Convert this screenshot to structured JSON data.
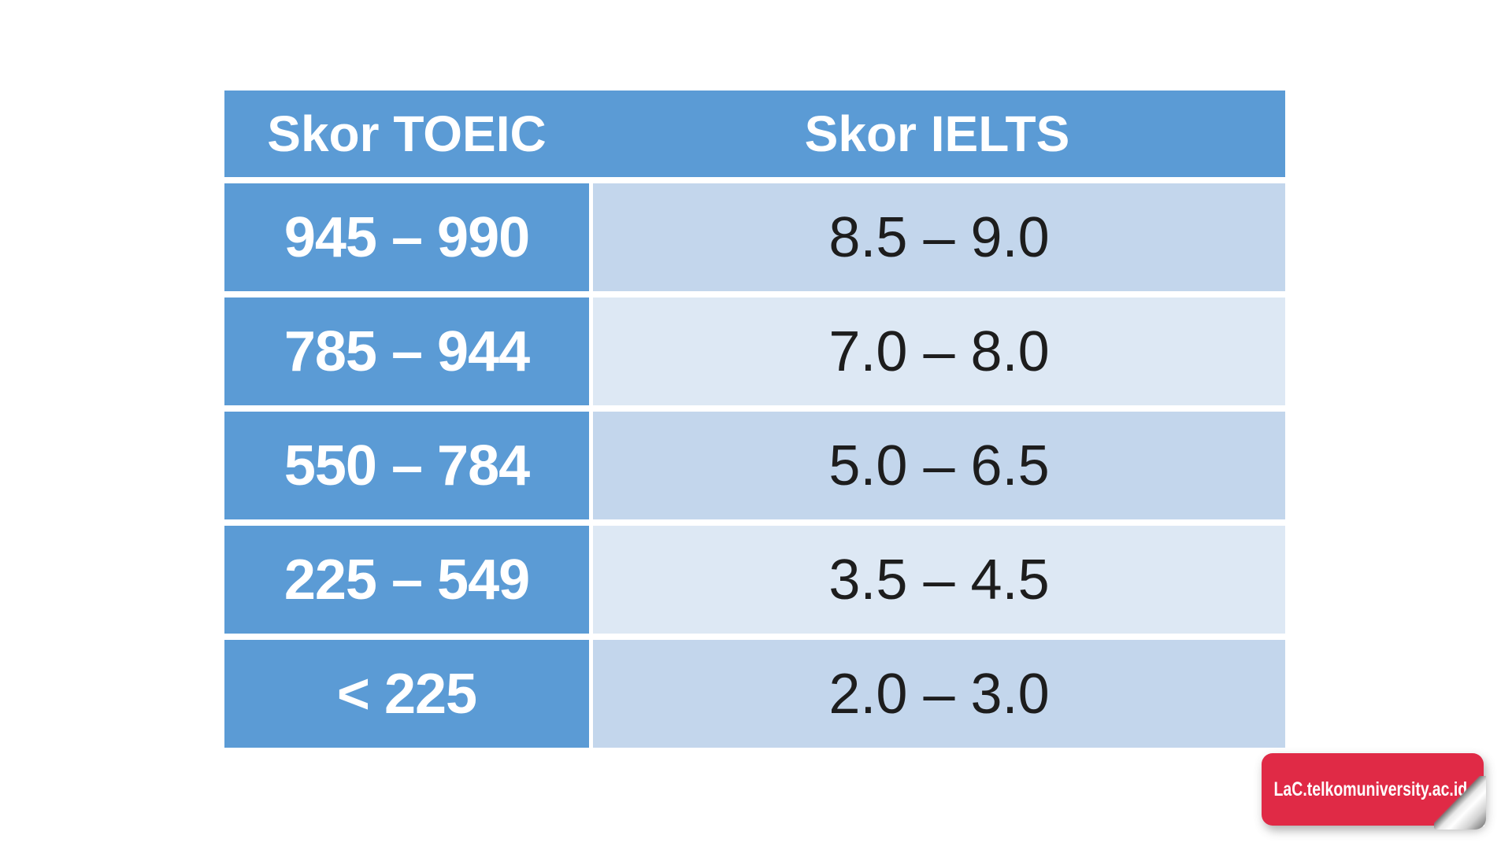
{
  "table": {
    "headers": [
      {
        "label": "Skor TOEIC"
      },
      {
        "label": "Skor IELTS"
      }
    ],
    "rows": [
      {
        "toeic": "945 – 990",
        "ielts": "8.5 – 9.0"
      },
      {
        "toeic": "785 – 944",
        "ielts": "7.0 – 8.0"
      },
      {
        "toeic": "550 – 784",
        "ielts": "5.0 – 6.5"
      },
      {
        "toeic": "225 – 549",
        "ielts": "3.5 – 4.5"
      },
      {
        "toeic": "< 225",
        "ielts": "2.0 – 3.0"
      }
    ],
    "colors": {
      "header_bg": "#5b9bd5",
      "toeic_cell_bg": "#5b9bd5",
      "ielts_band_a": "#c3d6ec",
      "ielts_band_b": "#dde8f4",
      "header_text": "#ffffff",
      "toeic_text": "#ffffff",
      "ielts_text": "#1d1d1d",
      "page_background": "#ffffff"
    }
  },
  "badge": {
    "label": "LaC.telkomuniversity.ac.id",
    "bg_color": "#e02a46",
    "text_color": "#ffffff"
  },
  "chart_data": {
    "type": "table",
    "title": "",
    "columns": [
      "Skor TOEIC",
      "Skor IELTS"
    ],
    "rows": [
      [
        "945 – 990",
        "8.5 – 9.0"
      ],
      [
        "785 – 944",
        "7.0 – 8.0"
      ],
      [
        "550 – 784",
        "5.0 – 6.5"
      ],
      [
        "225 – 549",
        "3.5 – 4.5"
      ],
      [
        "< 225",
        "2.0 – 3.0"
      ]
    ],
    "layout": {
      "banded_rows": true,
      "header_style": "solid blue bar, white bold text",
      "left_column_style": "solid blue cells, white bold text",
      "right_column_style": "alternating light blue bands, dark text"
    }
  }
}
